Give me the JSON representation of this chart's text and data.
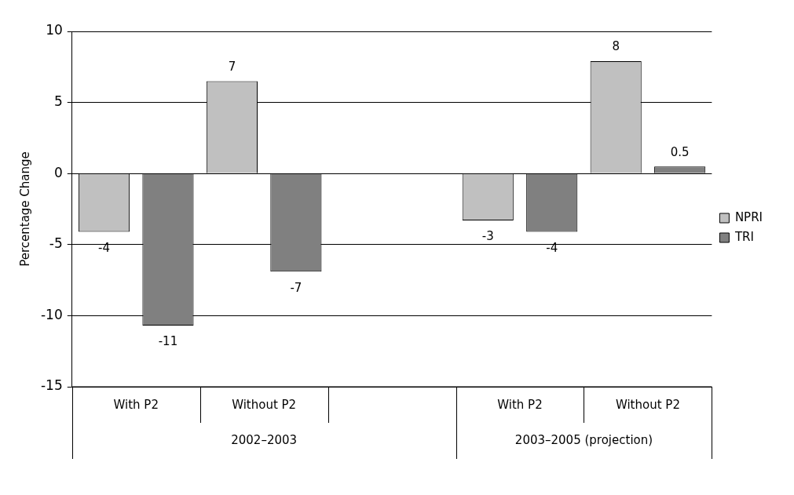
{
  "chart_data": {
    "type": "bar",
    "ylabel": "Percentage Change",
    "categories": [
      "With P2",
      "Without P2",
      null,
      "With P2",
      "Without P2"
    ],
    "series": [
      {
        "name": "NPRI",
        "color": "#c0c0c0",
        "values": [
          -4.1,
          6.5,
          null,
          -3.3,
          7.9
        ],
        "value_labels": [
          "-4",
          "7",
          null,
          "-3",
          "8"
        ]
      },
      {
        "name": "TRI",
        "color": "#808080",
        "values": [
          -10.7,
          -6.9,
          null,
          -4.1,
          0.5
        ],
        "value_labels": [
          "-11",
          "-7",
          null,
          "-4",
          "0.5"
        ]
      }
    ],
    "annotations": [
      "2002–2003",
      "2003–2005 (projection)"
    ],
    "ylim": [
      -15,
      10
    ],
    "yticks": [
      -15,
      -10,
      -5,
      0,
      5,
      10
    ],
    "grid": "y",
    "legend": "right"
  }
}
